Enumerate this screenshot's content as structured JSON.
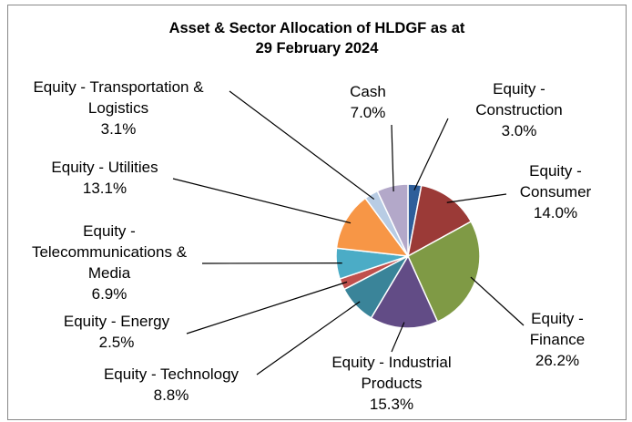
{
  "chart_data": {
    "type": "pie",
    "title": "Asset & Sector Allocation of HLDGF as at 29 February 2024",
    "categories": [
      "Equity - Construction",
      "Equity - Consumer",
      "Equity - Finance",
      "Equity - Industrial Products",
      "Equity - Technology",
      "Equity - Energy",
      "Equity - Telecommunications & Media",
      "Equity - Utilities",
      "Equity - Transportation & Logistics",
      "Cash"
    ],
    "values": [
      3.0,
      14.0,
      26.2,
      15.3,
      8.8,
      2.5,
      6.9,
      13.1,
      3.1,
      7.0
    ],
    "value_labels": [
      "3.0%",
      "14.0%",
      "26.2%",
      "15.3%",
      "8.8%",
      "2.5%",
      "6.9%",
      "13.1%",
      "3.1%",
      "7.0%"
    ],
    "colors": [
      "#2e5e9a",
      "#9b3a37",
      "#7f9a45",
      "#624c86",
      "#3a8499",
      "#c0504d",
      "#4bacc6",
      "#f79646",
      "#b8cce4",
      "#b3a8c9"
    ]
  }
}
